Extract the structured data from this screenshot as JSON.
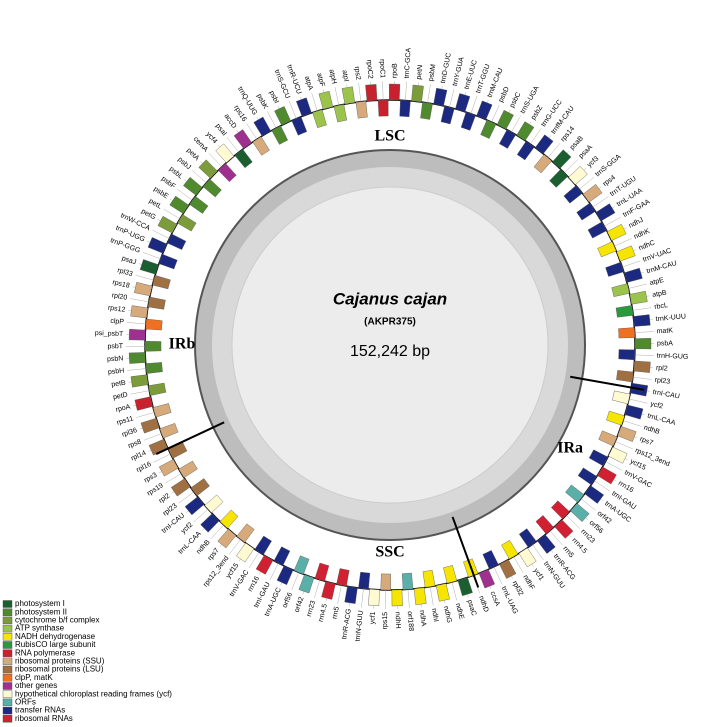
{
  "title": "Cajanus cajan",
  "subtitle": "(AKPR375)",
  "size": "152,242 bp",
  "regions": [
    [
      "LSC",
      0
    ],
    [
      "IRa",
      100
    ],
    [
      "SSC",
      160
    ],
    [
      "IRb",
      245
    ]
  ],
  "legend": [
    [
      "photosystem I",
      "#1b5e30"
    ],
    [
      "photosystem II",
      "#4f8a2e"
    ],
    [
      "cytochrome b/f complex",
      "#7c9c3c"
    ],
    [
      "ATP synthase",
      "#9cc44c"
    ],
    [
      "NADH dehydrogenase",
      "#f6e500"
    ],
    [
      "RubisCO large subunit",
      "#2a9a3c"
    ],
    [
      "RNA polymerase",
      "#c8202c"
    ],
    [
      "ribosomal proteins (SSU)",
      "#d6aa7a"
    ],
    [
      "ribosomal proteins (LSU)",
      "#a07042"
    ],
    [
      "clpP, matK",
      "#f07022"
    ],
    [
      "other genes",
      "#a03090"
    ],
    [
      "hypothetical chloroplast reading frames (ycf)",
      "#fffad2"
    ],
    [
      "ORFs",
      "#5ab0a8"
    ],
    [
      "transfer RNAs",
      "#1b2a80"
    ],
    [
      "ribosomal RNAs",
      "#d02032"
    ]
  ],
  "genes": [
    [
      "rpoB",
      6
    ],
    [
      "trnC-GCA",
      13
    ],
    [
      "petN",
      2
    ],
    [
      "psbM",
      1
    ],
    [
      "trnD-GUC",
      13
    ],
    [
      "trnY-GUA",
      13
    ],
    [
      "trnE-UUC",
      13
    ],
    [
      "trnT-GGU",
      13
    ],
    [
      "trnM-CAU",
      13
    ],
    [
      "psbD",
      1
    ],
    [
      "psbC",
      1
    ],
    [
      "trnS-UGA",
      13
    ],
    [
      "psbZ",
      1
    ],
    [
      "trnG-UCC",
      13
    ],
    [
      "trnfM-CAU",
      13
    ],
    [
      "rps14",
      7
    ],
    [
      "psaB",
      0
    ],
    [
      "psaA",
      0
    ],
    [
      "ycf3",
      11
    ],
    [
      "trnS-GGA",
      13
    ],
    [
      "rps4",
      7
    ],
    [
      "trnT-UGU",
      13
    ],
    [
      "trnL-UAA",
      13
    ],
    [
      "trnF-GAA",
      13
    ],
    [
      "ndhJ",
      4
    ],
    [
      "ndhK",
      4
    ],
    [
      "ndhC",
      4
    ],
    [
      "trnV-UAC",
      13
    ],
    [
      "trnM-CAU",
      13
    ],
    [
      "atpE",
      3
    ],
    [
      "atpB",
      3
    ],
    [
      "rbcL",
      5
    ],
    [
      "trnK-UUU",
      13
    ],
    [
      "matK",
      9
    ],
    [
      "psbA",
      1
    ],
    [
      "trnH-GUG",
      13
    ],
    [
      "rpl2",
      8
    ],
    [
      "rpl23",
      8
    ],
    [
      "trnI-CAU",
      13
    ],
    [
      "ycf2",
      11
    ],
    [
      "trnL-CAA",
      13
    ],
    [
      "ndhB",
      4
    ],
    [
      "rps7",
      7
    ],
    [
      "rps12_3end",
      7
    ],
    [
      "ycf15",
      11
    ],
    [
      "trnV-GAC",
      13
    ],
    [
      "rrn16",
      14
    ],
    [
      "trnI-GAU",
      13
    ],
    [
      "trnA-UGC",
      13
    ],
    [
      "orf42",
      12
    ],
    [
      "orf56",
      12
    ],
    [
      "rrn23",
      14
    ],
    [
      "rrn4.5",
      14
    ],
    [
      "rrn5",
      14
    ],
    [
      "trnR-ACG",
      13
    ],
    [
      "trnN-GUU",
      13
    ],
    [
      "ycf1",
      11
    ],
    [
      "ndhF",
      4
    ],
    [
      "rpl32",
      8
    ],
    [
      "trnL-UAG",
      13
    ],
    [
      "ccsA",
      10
    ],
    [
      "ndhD",
      4
    ],
    [
      "psaC",
      0
    ],
    [
      "ndhE",
      4
    ],
    [
      "ndhG",
      4
    ],
    [
      "ndhI",
      4
    ],
    [
      "ndhA",
      4
    ],
    [
      "orf188",
      12
    ],
    [
      "ndhH",
      4
    ],
    [
      "rps15",
      7
    ],
    [
      "ycf1",
      11
    ],
    [
      "trnN-GUU",
      13
    ],
    [
      "trnR-ACG",
      13
    ],
    [
      "rrn5",
      14
    ],
    [
      "rrn4.5",
      14
    ],
    [
      "rrn23",
      14
    ],
    [
      "orf42",
      12
    ],
    [
      "orf56",
      12
    ],
    [
      "trnA-UGC",
      13
    ],
    [
      "trnI-GAU",
      13
    ],
    [
      "rrn16",
      14
    ],
    [
      "trnV-GAC",
      13
    ],
    [
      "ycf15",
      11
    ],
    [
      "rps12_3end",
      7
    ],
    [
      "rps7",
      7
    ],
    [
      "ndhB",
      4
    ],
    [
      "trnL-CAA",
      13
    ],
    [
      "ycf2",
      11
    ],
    [
      "trnI-CAU",
      13
    ],
    [
      "rpl23",
      8
    ],
    [
      "rpl2",
      8
    ],
    [
      "rps19",
      7
    ],
    [
      "rps3",
      7
    ],
    [
      "rpl16",
      8
    ],
    [
      "rpl14",
      8
    ],
    [
      "rps8",
      7
    ],
    [
      "rpl36",
      8
    ],
    [
      "rps11",
      7
    ],
    [
      "rpoA",
      6
    ],
    [
      "petD",
      2
    ],
    [
      "petB",
      2
    ],
    [
      "psbH",
      1
    ],
    [
      "psbN",
      1
    ],
    [
      "psbT",
      1
    ],
    [
      "psi_psbT",
      10
    ],
    [
      "clpP",
      9
    ],
    [
      "rps12",
      7
    ],
    [
      "rpl20",
      8
    ],
    [
      "rps18",
      7
    ],
    [
      "rpl33",
      8
    ],
    [
      "psaJ",
      0
    ],
    [
      "trnP-GGG",
      13
    ],
    [
      "trnP-UGG",
      13
    ],
    [
      "trnW-CCA",
      13
    ],
    [
      "petG",
      2
    ],
    [
      "petL",
      2
    ],
    [
      "psbE",
      1
    ],
    [
      "psbF",
      1
    ],
    [
      "psbL",
      1
    ],
    [
      "psbJ",
      1
    ],
    [
      "petA",
      2
    ],
    [
      "cemA",
      10
    ],
    [
      "ycf4",
      11
    ],
    [
      "psaI",
      0
    ],
    [
      "accD",
      10
    ],
    [
      "rps16",
      7
    ],
    [
      "trnQ-UUG",
      13
    ],
    [
      "psbK",
      1
    ],
    [
      "psbI",
      1
    ],
    [
      "trnS-GCU",
      13
    ],
    [
      "trnR-UCU",
      13
    ],
    [
      "atpA",
      3
    ],
    [
      "atpF",
      3
    ],
    [
      "atpH",
      3
    ],
    [
      "atpI",
      3
    ],
    [
      "rps2",
      7
    ],
    [
      "rpoC2",
      6
    ],
    [
      "rpoC1",
      6
    ]
  ]
}
